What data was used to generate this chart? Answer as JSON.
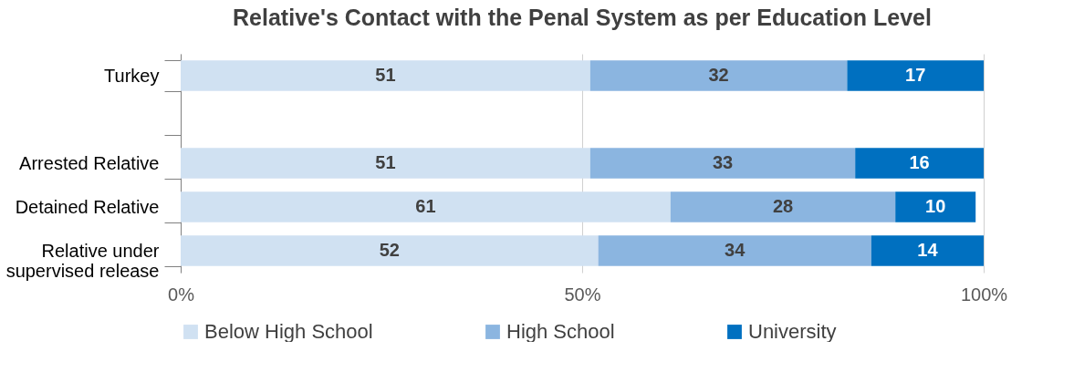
{
  "chart_data": {
    "type": "bar",
    "orientation": "horizontal",
    "stacked": true,
    "title": "Relative's Contact with the Penal System as per Education Level",
    "categories": [
      "Turkey",
      null,
      "Arrested Relative",
      "Detained Relative",
      "Relative under supervised release"
    ],
    "series": [
      {
        "name": "Below High School",
        "color": "#d0e1f2",
        "values": [
          51,
          null,
          51,
          61,
          52
        ]
      },
      {
        "name": "High School",
        "color": "#8bb5e0",
        "values": [
          32,
          null,
          33,
          28,
          34
        ]
      },
      {
        "name": "University",
        "color": "#0070c0",
        "values": [
          17,
          null,
          16,
          10,
          14
        ]
      }
    ],
    "xlim": [
      0,
      100
    ],
    "xticks": [
      {
        "value": 0,
        "label": "0%"
      },
      {
        "value": 50,
        "label": "50%"
      },
      {
        "value": 100,
        "label": "100%"
      }
    ],
    "grid": "x",
    "legend": "bottom",
    "data_labels": true
  }
}
